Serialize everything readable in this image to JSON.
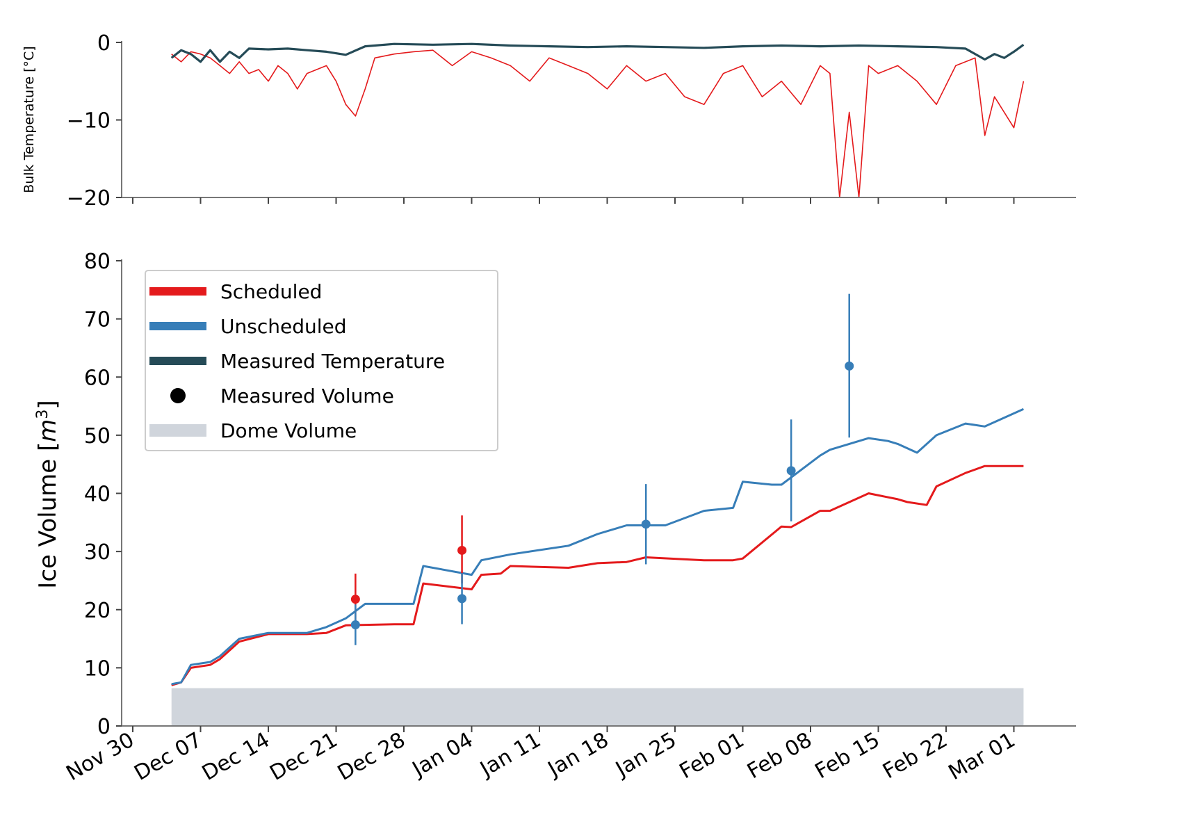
{
  "chart_data": [
    {
      "type": "line",
      "ylabel": "Bulk Temperature [°C]",
      "ylim": [
        -20,
        0
      ],
      "yticks": [
        0,
        -10,
        -20
      ],
      "xlim": [
        "2022-11-29",
        "2023-03-05"
      ],
      "series": [
        {
          "name": "Scheduled",
          "color": "#e41a1c",
          "x": [
            "2022-12-04",
            "2022-12-05",
            "2022-12-06",
            "2022-12-07",
            "2022-12-08",
            "2022-12-09",
            "2022-12-10",
            "2022-12-11",
            "2022-12-12",
            "2022-12-13",
            "2022-12-14",
            "2022-12-15",
            "2022-12-16",
            "2022-12-17",
            "2022-12-18",
            "2022-12-19",
            "2022-12-20",
            "2022-12-21",
            "2022-12-22",
            "2022-12-23",
            "2022-12-24",
            "2022-12-25",
            "2022-12-27",
            "2022-12-29",
            "2022-12-31",
            "2023-01-02",
            "2023-01-04",
            "2023-01-06",
            "2023-01-08",
            "2023-01-10",
            "2023-01-12",
            "2023-01-14",
            "2023-01-16",
            "2023-01-18",
            "2023-01-20",
            "2023-01-22",
            "2023-01-24",
            "2023-01-26",
            "2023-01-28",
            "2023-01-30",
            "2023-02-01",
            "2023-02-03",
            "2023-02-05",
            "2023-02-07",
            "2023-02-09",
            "2023-02-10",
            "2023-02-11",
            "2023-02-12",
            "2023-02-13",
            "2023-02-14",
            "2023-02-15",
            "2023-02-17",
            "2023-02-19",
            "2023-02-21",
            "2023-02-23",
            "2023-02-25",
            "2023-02-26",
            "2023-02-27",
            "2023-02-28",
            "2023-03-01",
            "2023-03-02"
          ],
          "y": [
            -1.5,
            -2.5,
            -1.2,
            -1.5,
            -2,
            -3,
            -4,
            -2.5,
            -4,
            -3.5,
            -5,
            -3,
            -4,
            -6,
            -4,
            -3.5,
            -3,
            -5,
            -8,
            -9.5,
            -6,
            -2,
            -1.5,
            -1.2,
            -1,
            -3,
            -1.2,
            -2,
            -3,
            -5,
            -2,
            -3,
            -4,
            -6,
            -3,
            -5,
            -4,
            -7,
            -8,
            -4,
            -3,
            -7,
            -5,
            -8,
            -3,
            -4,
            -20,
            -9,
            -20,
            -3,
            -4,
            -3,
            -5,
            -8,
            -3,
            -2,
            -12,
            -7,
            -9,
            -11,
            -5
          ]
        },
        {
          "name": "Measured Temperature",
          "color": "#254b57",
          "x": [
            "2022-12-04",
            "2022-12-05",
            "2022-12-06",
            "2022-12-07",
            "2022-12-08",
            "2022-12-09",
            "2022-12-10",
            "2022-12-11",
            "2022-12-12",
            "2022-12-14",
            "2022-12-16",
            "2022-12-18",
            "2022-12-20",
            "2022-12-22",
            "2022-12-24",
            "2022-12-27",
            "2022-12-31",
            "2023-01-04",
            "2023-01-08",
            "2023-01-12",
            "2023-01-16",
            "2023-01-20",
            "2023-01-24",
            "2023-01-28",
            "2023-02-01",
            "2023-02-05",
            "2023-02-09",
            "2023-02-13",
            "2023-02-17",
            "2023-02-21",
            "2023-02-24",
            "2023-02-26",
            "2023-02-27",
            "2023-02-28",
            "2023-03-01",
            "2023-03-02"
          ],
          "y": [
            -2,
            -1,
            -1.5,
            -2.5,
            -1,
            -2.5,
            -1.2,
            -2,
            -0.8,
            -0.9,
            -0.8,
            -1,
            -1.2,
            -1.6,
            -0.5,
            -0.2,
            -0.3,
            -0.2,
            -0.4,
            -0.5,
            -0.6,
            -0.5,
            -0.6,
            -0.7,
            -0.5,
            -0.4,
            -0.5,
            -0.4,
            -0.5,
            -0.6,
            -0.8,
            -2.2,
            -1.5,
            -2,
            -1.2,
            -0.3
          ]
        }
      ]
    },
    {
      "type": "line",
      "ylabel": "Ice Volume [m3]",
      "ylim": [
        0,
        80
      ],
      "yticks": [
        0,
        10,
        20,
        30,
        40,
        50,
        60,
        70,
        80
      ],
      "xlim": [
        "2022-11-29",
        "2023-03-05"
      ],
      "xticks": [
        "Nov 30",
        "Dec 07",
        "Dec 14",
        "Dec 21",
        "Dec 28",
        "Jan 04",
        "Jan 11",
        "Jan 18",
        "Jan 25",
        "Feb 01",
        "Feb 08",
        "Feb 15",
        "Feb 22",
        "Mar 01"
      ],
      "series": [
        {
          "name": "Scheduled",
          "color": "#e41a1c",
          "x": [
            "2022-12-04",
            "2022-12-05",
            "2022-12-06",
            "2022-12-08",
            "2022-12-09",
            "2022-12-10",
            "2022-12-11",
            "2022-12-14",
            "2022-12-18",
            "2022-12-20",
            "2022-12-22",
            "2022-12-27",
            "2022-12-29",
            "2022-12-30",
            "2023-01-04",
            "2023-01-05",
            "2023-01-07",
            "2023-01-08",
            "2023-01-14",
            "2023-01-17",
            "2023-01-20",
            "2023-01-22",
            "2023-01-28",
            "2023-01-31",
            "2023-02-01",
            "2023-02-05",
            "2023-02-06",
            "2023-02-09",
            "2023-02-10",
            "2023-02-14",
            "2023-02-17",
            "2023-02-18",
            "2023-02-20",
            "2023-02-21",
            "2023-02-24",
            "2023-02-26",
            "2023-03-02"
          ],
          "y": [
            7,
            7.5,
            10,
            10.5,
            11.5,
            13,
            14.5,
            15.8,
            15.8,
            16,
            17.3,
            17.5,
            17.5,
            24.5,
            23.5,
            26,
            26.2,
            27.5,
            27.2,
            28,
            28.2,
            29,
            28.5,
            28.5,
            28.8,
            34.3,
            34.2,
            37,
            37,
            40,
            39,
            38.5,
            38,
            41.2,
            43.5,
            44.7,
            44.7
          ]
        },
        {
          "name": "Unscheduled",
          "color": "#377eb8",
          "x": [
            "2022-12-04",
            "2022-12-05",
            "2022-12-06",
            "2022-12-08",
            "2022-12-09",
            "2022-12-10",
            "2022-12-11",
            "2022-12-14",
            "2022-12-18",
            "2022-12-20",
            "2022-12-22",
            "2022-12-24",
            "2022-12-27",
            "2022-12-29",
            "2022-12-30",
            "2023-01-04",
            "2023-01-05",
            "2023-01-08",
            "2023-01-14",
            "2023-01-17",
            "2023-01-20",
            "2023-01-22",
            "2023-01-24",
            "2023-01-28",
            "2023-01-31",
            "2023-02-01",
            "2023-02-04",
            "2023-02-05",
            "2023-02-09",
            "2023-02-10",
            "2023-02-12",
            "2023-02-14",
            "2023-02-16",
            "2023-02-17",
            "2023-02-19",
            "2023-02-21",
            "2023-02-24",
            "2023-02-26",
            "2023-03-02"
          ],
          "y": [
            7.2,
            7.5,
            10.5,
            11,
            12,
            13.5,
            15,
            16,
            16,
            17,
            18.5,
            21,
            21,
            21,
            27.5,
            26,
            28.5,
            29.5,
            31,
            33,
            34.5,
            34.5,
            34.5,
            37,
            37.5,
            42,
            41.5,
            41.5,
            46.5,
            47.5,
            48.5,
            49.5,
            49,
            48.5,
            47,
            50,
            52,
            51.5,
            54.5
          ]
        }
      ],
      "measured_volume": [
        {
          "series": "Scheduled",
          "color": "#e41a1c",
          "x": "2022-12-23",
          "y": 21.8,
          "err_low": 17.5,
          "err_high": 26.2
        },
        {
          "series": "Scheduled",
          "color": "#e41a1c",
          "x": "2023-01-03",
          "y": 30.2,
          "err_low": 24.5,
          "err_high": 36.2
        },
        {
          "series": "Unscheduled",
          "color": "#377eb8",
          "x": "2022-12-23",
          "y": 17.4,
          "err_low": 13.9,
          "err_high": 20.9
        },
        {
          "series": "Unscheduled",
          "color": "#377eb8",
          "x": "2023-01-03",
          "y": 21.9,
          "err_low": 17.5,
          "err_high": 26.3
        },
        {
          "series": "Unscheduled",
          "color": "#377eb8",
          "x": "2023-01-22",
          "y": 34.7,
          "err_low": 27.8,
          "err_high": 41.6
        },
        {
          "series": "Unscheduled",
          "color": "#377eb8",
          "x": "2023-02-06",
          "y": 43.9,
          "err_low": 35.2,
          "err_high": 52.7
        },
        {
          "series": "Unscheduled",
          "color": "#377eb8",
          "x": "2023-02-12",
          "y": 61.9,
          "err_low": 49.6,
          "err_high": 74.3
        }
      ],
      "dome_volume": {
        "color": "#d0d5dc",
        "x_start": "2022-12-04",
        "x_end": "2023-03-02",
        "y": 6.5
      },
      "legend": {
        "placement": "upper-left",
        "entries": [
          {
            "label": "Scheduled",
            "color": "#e41a1c",
            "marker": "line"
          },
          {
            "label": "Unscheduled",
            "color": "#377eb8",
            "marker": "line"
          },
          {
            "label": "Measured Temperature",
            "color": "#254b57",
            "marker": "line"
          },
          {
            "label": "Measured Volume",
            "color": "#000000",
            "marker": "dot"
          },
          {
            "label": "Dome Volume",
            "color": "#d0d5dc",
            "marker": "band"
          }
        ]
      }
    }
  ]
}
